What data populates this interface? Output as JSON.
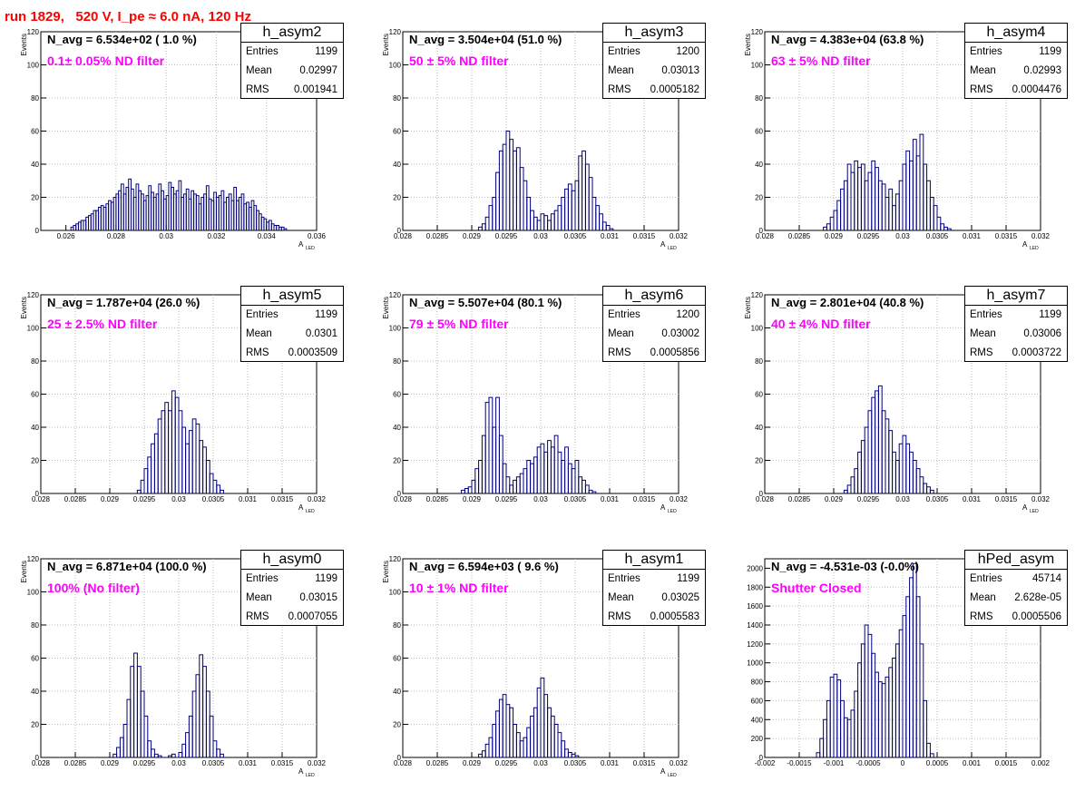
{
  "run_title": "run 1829,   520 V, I_pe ≈ 6.0 nA, 120 Hz",
  "colors": {
    "title": "#ff0000",
    "annotation": "#ff00ff",
    "histogram": "#000080",
    "grid": "#bbbbbb"
  },
  "chart_data": [
    {
      "type": "histogram",
      "name": "h_asym2",
      "navg": "N_avg = 6.534e+02 ( 1.0 %)",
      "filter": "0.1± 0.05% ND filter",
      "entries": "1199",
      "mean": "0.02997",
      "rms": "0.001941",
      "ylabel": "Events",
      "xlabel": "A",
      "xlabel_sub": "LED",
      "xlim": [
        0.025,
        0.036
      ],
      "ylim": [
        0,
        120
      ],
      "xticks": [
        0.026,
        0.028,
        0.03,
        0.032,
        0.034,
        0.036
      ],
      "xtick_labels": [
        "0.026",
        "0.028",
        "0.03",
        "0.032",
        "0.034",
        "0.036"
      ],
      "yticks": [
        0,
        20,
        40,
        60,
        80,
        100,
        120
      ],
      "ytick_labels": [
        "0",
        "20",
        "40",
        "60",
        "80",
        "100",
        "120"
      ],
      "x0": 0.0262,
      "dx": 0.0001,
      "values": [
        2,
        3,
        4,
        5,
        6,
        6,
        8,
        9,
        10,
        12,
        12,
        14,
        15,
        14,
        16,
        18,
        17,
        20,
        22,
        24,
        28,
        22,
        26,
        31,
        25,
        20,
        28,
        24,
        22,
        18,
        21,
        27,
        23,
        20,
        22,
        28,
        24,
        19,
        21,
        29,
        26,
        22,
        24,
        30,
        20,
        22,
        25,
        19,
        24,
        22,
        21,
        16,
        20,
        22,
        27,
        19,
        18,
        23,
        20,
        21,
        24,
        17,
        20,
        22,
        18,
        26,
        18,
        20,
        22,
        16,
        17,
        14,
        18,
        15,
        12,
        10,
        8,
        7,
        5,
        6,
        4,
        3,
        3,
        2,
        2,
        1
      ]
    },
    {
      "type": "histogram",
      "name": "h_asym3",
      "navg": "N_avg = 3.504e+04 (51.0 %)",
      "filter": "50 ± 5% ND filter",
      "entries": "1200",
      "mean": "0.03013",
      "rms": "0.0005182",
      "ylabel": "Events",
      "xlabel": "A",
      "xlabel_sub": "LED",
      "xlim": [
        0.028,
        0.032
      ],
      "ylim": [
        0,
        120
      ],
      "xticks": [
        0.028,
        0.0285,
        0.029,
        0.0295,
        0.03,
        0.0305,
        0.031,
        0.0315,
        0.032
      ],
      "xtick_labels": [
        "0.028",
        "0.0285",
        "0.029",
        "0.0295",
        "0.03",
        "0.0305",
        "0.031",
        "0.0315",
        "0.032"
      ],
      "yticks": [
        0,
        20,
        40,
        60,
        80,
        100,
        120
      ],
      "ytick_labels": [
        "0",
        "20",
        "40",
        "60",
        "80",
        "100",
        "120"
      ],
      "x0": 0.0291,
      "dx": 5e-05,
      "values": [
        2,
        4,
        8,
        15,
        20,
        35,
        48,
        52,
        60,
        55,
        48,
        50,
        38,
        30,
        20,
        12,
        8,
        6,
        10,
        9,
        6,
        10,
        12,
        15,
        20,
        25,
        28,
        24,
        30,
        45,
        48,
        40,
        32,
        20,
        15,
        10,
        5,
        3,
        1
      ]
    },
    {
      "type": "histogram",
      "name": "h_asym4",
      "navg": "N_avg = 4.383e+04 (63.8 %)",
      "filter": "63 ± 5% ND filter",
      "entries": "1199",
      "mean": "0.02993",
      "rms": "0.0004476",
      "ylabel": "Events",
      "xlabel": "A",
      "xlabel_sub": "LED",
      "xlim": [
        0.028,
        0.032
      ],
      "ylim": [
        0,
        120
      ],
      "xticks": [
        0.028,
        0.0285,
        0.029,
        0.0295,
        0.03,
        0.0305,
        0.031,
        0.0315,
        0.032
      ],
      "xtick_labels": [
        "0.028",
        "0.0285",
        "0.029",
        "0.0295",
        "0.03",
        "0.0305",
        "0.031",
        "0.0315",
        "0.032"
      ],
      "yticks": [
        0,
        20,
        40,
        60,
        80,
        100,
        120
      ],
      "ytick_labels": [
        "0",
        "20",
        "40",
        "60",
        "80",
        "100",
        "120"
      ],
      "x0": 0.02885,
      "dx": 5e-05,
      "values": [
        2,
        4,
        8,
        12,
        18,
        25,
        30,
        40,
        35,
        42,
        38,
        40,
        30,
        35,
        42,
        38,
        30,
        28,
        20,
        25,
        15,
        22,
        30,
        40,
        48,
        42,
        55,
        45,
        58,
        40,
        30,
        20,
        15,
        8,
        4,
        2,
        1
      ]
    },
    {
      "type": "histogram",
      "name": "h_asym5",
      "navg": "N_avg = 1.787e+04 (26.0 %)",
      "filter": "25 ± 2.5% ND filter",
      "entries": "1199",
      "mean": "0.0301",
      "rms": "0.0003509",
      "ylabel": "Events",
      "xlabel": "A",
      "xlabel_sub": "LED",
      "xlim": [
        0.028,
        0.032
      ],
      "ylim": [
        0,
        120
      ],
      "xticks": [
        0.028,
        0.0285,
        0.029,
        0.0295,
        0.03,
        0.0305,
        0.031,
        0.0315,
        0.032
      ],
      "xtick_labels": [
        "0.028",
        "0.0285",
        "0.029",
        "0.0295",
        "0.03",
        "0.0305",
        "0.031",
        "0.0315",
        "0.032"
      ],
      "yticks": [
        0,
        20,
        40,
        60,
        80,
        100,
        120
      ],
      "ytick_labels": [
        "0",
        "20",
        "40",
        "60",
        "80",
        "100",
        "120"
      ],
      "x0": 0.0294,
      "dx": 5e-05,
      "values": [
        2,
        8,
        15,
        22,
        30,
        36,
        45,
        50,
        55,
        50,
        62,
        58,
        50,
        40,
        30,
        38,
        45,
        42,
        32,
        28,
        20,
        12,
        8,
        5,
        2
      ]
    },
    {
      "type": "histogram",
      "name": "h_asym6",
      "navg": "N_avg = 5.507e+04 (80.1 %)",
      "filter": "79 ± 5% ND filter",
      "entries": "1200",
      "mean": "0.03002",
      "rms": "0.0005856",
      "ylabel": "Events",
      "xlabel": "A",
      "xlabel_sub": "LED",
      "xlim": [
        0.028,
        0.032
      ],
      "ylim": [
        0,
        120
      ],
      "xticks": [
        0.028,
        0.0285,
        0.029,
        0.0295,
        0.03,
        0.0305,
        0.031,
        0.0315,
        0.032
      ],
      "xtick_labels": [
        "0.028",
        "0.0285",
        "0.029",
        "0.0295",
        "0.03",
        "0.0305",
        "0.031",
        "0.0315",
        "0.032"
      ],
      "yticks": [
        0,
        20,
        40,
        60,
        80,
        100,
        120
      ],
      "ytick_labels": [
        "0",
        "20",
        "40",
        "60",
        "80",
        "100",
        "120"
      ],
      "x0": 0.02885,
      "dx": 5e-05,
      "values": [
        2,
        3,
        4,
        8,
        15,
        20,
        35,
        55,
        58,
        40,
        58,
        35,
        18,
        10,
        5,
        8,
        10,
        12,
        15,
        20,
        18,
        22,
        28,
        30,
        25,
        32,
        28,
        35,
        25,
        20,
        28,
        18,
        15,
        20,
        10,
        8,
        5,
        2,
        1
      ]
    },
    {
      "type": "histogram",
      "name": "h_asym7",
      "navg": "N_avg = 2.801e+04 (40.8 %)",
      "filter": "40 ± 4% ND filter",
      "entries": "1199",
      "mean": "0.03006",
      "rms": "0.0003722",
      "ylabel": "Events",
      "xlabel": "A",
      "xlabel_sub": "LED",
      "xlim": [
        0.028,
        0.032
      ],
      "ylim": [
        0,
        120
      ],
      "xticks": [
        0.028,
        0.0285,
        0.029,
        0.0295,
        0.03,
        0.0305,
        0.031,
        0.0315,
        0.032
      ],
      "xtick_labels": [
        "0.028",
        "0.0285",
        "0.029",
        "0.0295",
        "0.03",
        "0.0305",
        "0.031",
        "0.0315",
        "0.032"
      ],
      "yticks": [
        0,
        20,
        40,
        60,
        80,
        100,
        120
      ],
      "ytick_labels": [
        "0",
        "20",
        "40",
        "60",
        "80",
        "100",
        "120"
      ],
      "x0": 0.02915,
      "dx": 5e-05,
      "values": [
        2,
        5,
        10,
        15,
        25,
        32,
        40,
        50,
        58,
        62,
        65,
        50,
        45,
        38,
        25,
        20,
        30,
        35,
        30,
        25,
        20,
        15,
        10,
        6,
        4,
        2
      ]
    },
    {
      "type": "histogram",
      "name": "h_asym0",
      "navg": "N_avg = 6.871e+04 (100.0 %)",
      "filter": "100% (No filter)",
      "entries": "1199",
      "mean": "0.03015",
      "rms": "0.0007055",
      "ylabel": "Events",
      "xlabel": "A",
      "xlabel_sub": "LED",
      "xlim": [
        0.028,
        0.032
      ],
      "ylim": [
        0,
        120
      ],
      "xticks": [
        0.028,
        0.0285,
        0.029,
        0.0295,
        0.03,
        0.0305,
        0.031,
        0.0315,
        0.032
      ],
      "xtick_labels": [
        "0.028",
        "0.0285",
        "0.029",
        "0.0295",
        "0.03",
        "0.0305",
        "0.031",
        "0.0315",
        "0.032"
      ],
      "yticks": [
        0,
        20,
        40,
        60,
        80,
        100,
        120
      ],
      "ytick_labels": [
        "0",
        "20",
        "40",
        "60",
        "80",
        "100",
        "120"
      ],
      "x0": 0.02905,
      "dx": 5e-05,
      "values": [
        2,
        6,
        12,
        20,
        35,
        55,
        63,
        55,
        40,
        25,
        10,
        5,
        2,
        1,
        0,
        0,
        1,
        2,
        0,
        3,
        8,
        15,
        25,
        40,
        50,
        62,
        55,
        40,
        25,
        10,
        5,
        2
      ]
    },
    {
      "type": "histogram",
      "name": "h_asym1",
      "navg": "N_avg = 6.594e+03 ( 9.6 %)",
      "filter": "10 ± 1% ND filter",
      "entries": "1199",
      "mean": "0.03025",
      "rms": "0.0005583",
      "ylabel": "Events",
      "xlabel": "A",
      "xlabel_sub": "LED",
      "xlim": [
        0.028,
        0.032
      ],
      "ylim": [
        0,
        120
      ],
      "xticks": [
        0.028,
        0.0285,
        0.029,
        0.0295,
        0.03,
        0.0305,
        0.031,
        0.0315,
        0.032
      ],
      "xtick_labels": [
        "0.028",
        "0.0285",
        "0.029",
        "0.0295",
        "0.03",
        "0.0305",
        "0.031",
        "0.0315",
        "0.032"
      ],
      "yticks": [
        0,
        20,
        40,
        60,
        80,
        100,
        120
      ],
      "ytick_labels": [
        "0",
        "20",
        "40",
        "60",
        "80",
        "100",
        "120"
      ],
      "x0": 0.0291,
      "dx": 5e-05,
      "values": [
        2,
        4,
        8,
        12,
        20,
        28,
        35,
        38,
        32,
        30,
        20,
        15,
        10,
        12,
        18,
        25,
        30,
        42,
        48,
        38,
        30,
        25,
        20,
        15,
        10,
        5,
        3,
        2,
        1
      ]
    },
    {
      "type": "histogram",
      "name": "hPed_asym",
      "navg": "N_avg = -4.531e-03 (-0.0%)",
      "filter": "Shutter Closed",
      "entries": "45714",
      "mean": "2.628e-05",
      "rms": "0.0005506",
      "ylabel": "",
      "xlabel": "",
      "xlabel_sub": "",
      "xlim": [
        -0.002,
        0.002
      ],
      "ylim": [
        0,
        2100
      ],
      "xticks": [
        -0.002,
        -0.0015,
        -0.001,
        -0.0005,
        0,
        0.0005,
        0.001,
        0.0015,
        0.002
      ],
      "xtick_labels": [
        "-0.002",
        "-0.0015",
        "-0.001",
        "-0.0005",
        "0",
        "0.0005",
        "0.001",
        "0.0015",
        "0.002"
      ],
      "yticks": [
        0,
        200,
        400,
        600,
        800,
        1000,
        1200,
        1400,
        1600,
        1800,
        2000
      ],
      "ytick_labels": [
        "0",
        "200",
        "400",
        "600",
        "800",
        "1000",
        "1200",
        "1400",
        "1600",
        "1800",
        "2000"
      ],
      "x0": -0.00125,
      "dx": 5e-05,
      "values": [
        50,
        200,
        400,
        600,
        850,
        880,
        820,
        600,
        420,
        400,
        500,
        700,
        1000,
        1200,
        1400,
        1300,
        1100,
        900,
        800,
        780,
        850,
        950,
        1050,
        1200,
        1350,
        1500,
        1700,
        1900,
        2050,
        1700,
        1200,
        600,
        150,
        40
      ]
    }
  ]
}
